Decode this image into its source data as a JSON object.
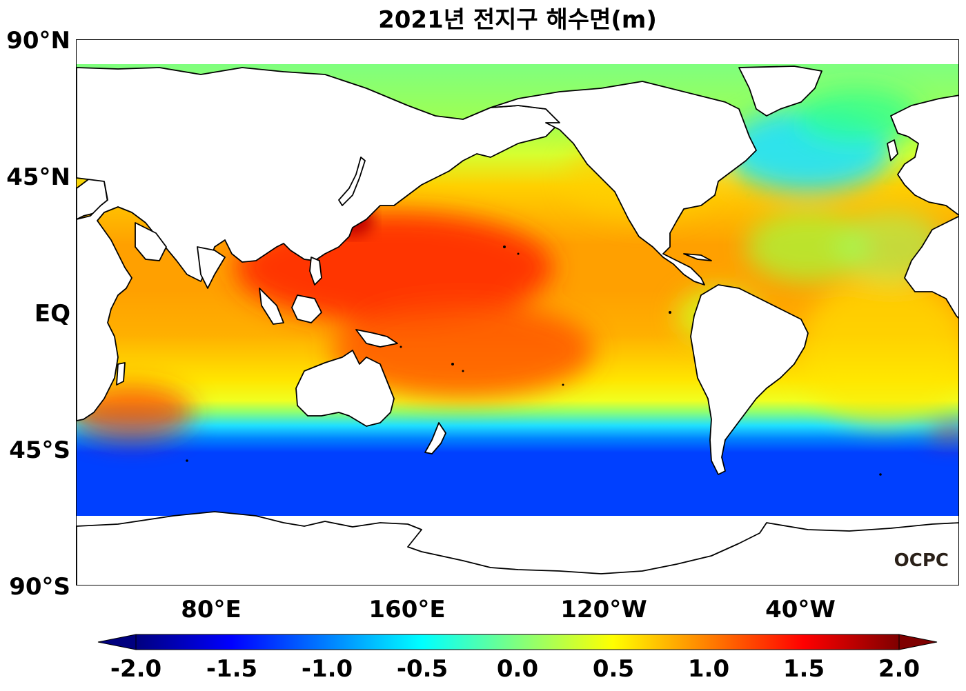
{
  "title": "2021년 전지구 해수면(m)",
  "watermark": "OCPC",
  "map": {
    "projection": "equirectangular",
    "lon_range": [
      30,
      390
    ],
    "lat_range": [
      -90,
      90
    ],
    "lat_labels": [
      "90°N",
      "45°N",
      "EQ",
      "45°S",
      "90°S"
    ],
    "lat_values": [
      90,
      45,
      0,
      -45,
      -90
    ],
    "lon_labels": [
      "80°E",
      "160°E",
      "120°W",
      "40°W"
    ],
    "lon_values": [
      80,
      160,
      240,
      320
    ],
    "colormap": "jet"
  },
  "colorbar": {
    "min": -2.0,
    "max": 2.0,
    "extend": "both",
    "ticks": [
      "-2.0",
      "-1.5",
      "-1.0",
      "-0.5",
      "0.0",
      "0.5",
      "1.0",
      "1.5",
      "2.0"
    ],
    "colors": [
      "#00007f",
      "#0000ff",
      "#007fff",
      "#00ffff",
      "#7fff7f",
      "#ffff00",
      "#ff7f00",
      "#ff0000",
      "#7f0000"
    ]
  }
}
